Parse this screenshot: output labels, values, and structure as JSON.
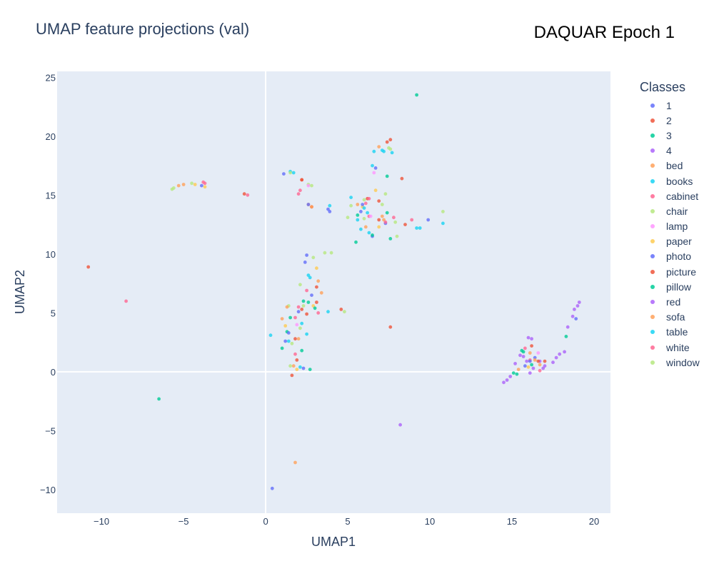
{
  "chart_data": {
    "type": "scatter",
    "title": "UMAP feature projections (val)",
    "annotation": "DAQUAR Epoch 1",
    "xlabel": "UMAP1",
    "ylabel": "UMAP2",
    "xlim": [
      -12.7,
      21
    ],
    "ylim": [
      -12,
      25.5
    ],
    "xticks": [
      -10,
      -5,
      0,
      5,
      10,
      15,
      20
    ],
    "yticks": [
      -10,
      -5,
      0,
      5,
      10,
      15,
      20,
      25
    ],
    "grid": true,
    "legend_title": "Classes",
    "legend_position": "right",
    "plot_background": "#e5ecf6",
    "series": [
      {
        "name": "1",
        "color": "#636efa",
        "points": [
          [
            0.4,
            -9.9
          ],
          [
            2.3,
            0.3
          ],
          [
            7.3,
            12.6
          ],
          [
            15.8,
            0.5
          ],
          [
            18.9,
            4.5
          ],
          [
            1.2,
            2.6
          ],
          [
            5.8,
            13.6
          ],
          [
            3.8,
            13.8
          ],
          [
            -3.9,
            15.8
          ],
          [
            2.0,
            5.1
          ],
          [
            6.7,
            17.3
          ],
          [
            2.4,
            9.3
          ],
          [
            16.4,
            1.2
          ],
          [
            1.1,
            16.8
          ]
        ]
      },
      {
        "name": "2",
        "color": "#ef553b",
        "points": [
          [
            -10.8,
            8.9
          ],
          [
            2.5,
            4.9
          ],
          [
            7.6,
            19.7
          ],
          [
            16.2,
            2.2
          ],
          [
            8.3,
            16.4
          ],
          [
            1.8,
            2.8
          ],
          [
            6.2,
            14.7
          ],
          [
            4.6,
            5.3
          ],
          [
            2.2,
            16.3
          ],
          [
            1.9,
            1.0
          ],
          [
            17.0,
            0.9
          ],
          [
            -1.3,
            15.1
          ],
          [
            3.1,
            5.9
          ],
          [
            6.9,
            12.9
          ]
        ]
      },
      {
        "name": "3",
        "color": "#00cc96",
        "points": [
          [
            -6.5,
            -2.3
          ],
          [
            1.3,
            3.4
          ],
          [
            2.6,
            5.9
          ],
          [
            15.3,
            -0.2
          ],
          [
            18.3,
            3.0
          ],
          [
            7.6,
            11.3
          ],
          [
            9.2,
            23.5
          ],
          [
            2.7,
            0.2
          ],
          [
            5.5,
            11.0
          ],
          [
            7.4,
            16.6
          ],
          [
            15.6,
            1.8
          ],
          [
            1.0,
            2.0
          ]
        ]
      },
      {
        "name": "4",
        "color": "#ab63fa",
        "points": [
          [
            8.2,
            -4.5
          ],
          [
            16.3,
            0.3
          ],
          [
            15.5,
            1.4
          ],
          [
            18.8,
            5.3
          ],
          [
            19.1,
            5.9
          ],
          [
            16.0,
            2.9
          ],
          [
            17.0,
            0.5
          ],
          [
            14.7,
            -0.7
          ],
          [
            16.7,
            0.9
          ],
          [
            17.7,
            1.2
          ],
          [
            15.9,
            0.9
          ],
          [
            18.2,
            1.7
          ]
        ]
      },
      {
        "name": "bed",
        "color": "#ffa15a",
        "points": [
          [
            1.8,
            -7.7
          ],
          [
            1.0,
            4.5
          ],
          [
            -5.0,
            15.9
          ],
          [
            2.6,
            14.2
          ],
          [
            7.2,
            12.9
          ],
          [
            16.4,
            1.0
          ],
          [
            5.6,
            14.2
          ],
          [
            3.2,
            7.7
          ],
          [
            1.7,
            0.5
          ],
          [
            16.1,
            1.6
          ]
        ]
      },
      {
        "name": "books",
        "color": "#19d3f3",
        "points": [
          [
            6.6,
            18.7
          ],
          [
            7.2,
            18.7
          ],
          [
            2.5,
            3.2
          ],
          [
            6.2,
            13.5
          ],
          [
            10.8,
            12.6
          ],
          [
            1.5,
            17.0
          ],
          [
            5.2,
            14.8
          ],
          [
            3.8,
            5.1
          ],
          [
            1.4,
            2.6
          ],
          [
            7.7,
            18.6
          ],
          [
            2.6,
            8.2
          ],
          [
            5.8,
            12.1
          ],
          [
            9.4,
            12.2
          ]
        ]
      },
      {
        "name": "cabinet",
        "color": "#ff6692",
        "points": [
          [
            -8.5,
            6.0
          ],
          [
            -3.7,
            16.0
          ],
          [
            2.0,
            15.1
          ],
          [
            16.1,
            1.0
          ],
          [
            1.8,
            4.6
          ],
          [
            7.3,
            12.7
          ],
          [
            6.1,
            14.3
          ],
          [
            2.5,
            6.9
          ],
          [
            -1.1,
            15.0
          ],
          [
            16.7,
            0.1
          ],
          [
            6.3,
            13.2
          ]
        ]
      },
      {
        "name": "chair",
        "color": "#b6e880",
        "points": [
          [
            -4.5,
            16.0
          ],
          [
            1.6,
            2.4
          ],
          [
            2.1,
            7.4
          ],
          [
            7.3,
            15.1
          ],
          [
            10.8,
            13.6
          ],
          [
            3.6,
            10.1
          ],
          [
            6.0,
            13.0
          ],
          [
            2.6,
            15.9
          ],
          [
            7.9,
            12.7
          ],
          [
            4.8,
            5.1
          ],
          [
            1.4,
            5.6
          ],
          [
            5.0,
            13.1
          ],
          [
            7.5,
            19.0
          ],
          [
            -5.7,
            15.5
          ],
          [
            2.9,
            9.7
          ]
        ]
      },
      {
        "name": "lamp",
        "color": "#ff97ff",
        "points": [
          [
            1.9,
            4.0
          ],
          [
            6.6,
            16.9
          ],
          [
            16.6,
            1.6
          ],
          [
            2.6,
            15.8
          ],
          [
            6.4,
            13.2
          ]
        ]
      },
      {
        "name": "paper",
        "color": "#fecb52",
        "points": [
          [
            -4.3,
            15.9
          ],
          [
            2.9,
            5.6
          ],
          [
            6.7,
            15.4
          ],
          [
            6.9,
            12.3
          ],
          [
            16.0,
            0.4
          ],
          [
            1.2,
            3.9
          ],
          [
            5.9,
            14.0
          ],
          [
            3.1,
            8.8
          ],
          [
            1.9,
            0.2
          ],
          [
            -3.7,
            15.7
          ]
        ]
      },
      {
        "name": "photo",
        "color": "#636efa",
        "points": [
          [
            2.6,
            14.2
          ],
          [
            6.5,
            11.5
          ],
          [
            5.9,
            14.2
          ],
          [
            16.1,
            0.9
          ],
          [
            2.8,
            6.5
          ],
          [
            1.4,
            3.3
          ],
          [
            3.9,
            13.6
          ],
          [
            9.9,
            12.9
          ],
          [
            2.5,
            9.9
          ]
        ]
      },
      {
        "name": "picture",
        "color": "#ef553b",
        "points": [
          [
            7.6,
            3.8
          ],
          [
            2.2,
            5.3
          ],
          [
            7.4,
            19.5
          ],
          [
            2.8,
            14.0
          ],
          [
            16.6,
            0.9
          ],
          [
            6.9,
            14.5
          ],
          [
            1.6,
            -0.3
          ],
          [
            3.1,
            7.2
          ],
          [
            8.5,
            12.5
          ],
          [
            2.2,
            16.3
          ]
        ]
      },
      {
        "name": "pillow",
        "color": "#00cc96",
        "points": [
          [
            2.3,
            6.0
          ],
          [
            7.4,
            13.5
          ],
          [
            15.1,
            -0.1
          ],
          [
            1.5,
            4.6
          ],
          [
            5.6,
            13.3
          ],
          [
            3.0,
            5.4
          ],
          [
            16.2,
            0.6
          ],
          [
            2.2,
            1.8
          ],
          [
            6.5,
            11.6
          ],
          [
            15.7,
            1.7
          ]
        ]
      },
      {
        "name": "red",
        "color": "#ab63fa",
        "points": [
          [
            15.7,
            1.3
          ],
          [
            18.7,
            4.7
          ],
          [
            14.5,
            -0.9
          ],
          [
            16.2,
            2.8
          ],
          [
            17.5,
            0.8
          ],
          [
            15.2,
            0.7
          ],
          [
            16.9,
            0.3
          ],
          [
            19.0,
            5.6
          ],
          [
            16.1,
            -0.1
          ],
          [
            17.9,
            1.5
          ],
          [
            14.9,
            -0.4
          ],
          [
            18.4,
            3.8
          ]
        ]
      },
      {
        "name": "sofa",
        "color": "#ffa15a",
        "points": [
          [
            2.0,
            2.8
          ],
          [
            6.9,
            19.1
          ],
          [
            15.4,
            0.2
          ],
          [
            -5.3,
            15.8
          ],
          [
            2.8,
            14.0
          ],
          [
            1.3,
            5.5
          ],
          [
            7.1,
            13.2
          ],
          [
            16.7,
            0.6
          ],
          [
            3.4,
            6.7
          ],
          [
            6.1,
            12.3
          ]
        ]
      },
      {
        "name": "table",
        "color": "#19d3f3",
        "points": [
          [
            0.3,
            3.1
          ],
          [
            6.5,
            17.5
          ],
          [
            6.0,
            13.9
          ],
          [
            3.9,
            14.1
          ],
          [
            7.1,
            18.8
          ],
          [
            2.2,
            4.1
          ],
          [
            9.2,
            12.2
          ],
          [
            2.1,
            0.4
          ],
          [
            2.7,
            8.0
          ],
          [
            1.7,
            16.9
          ],
          [
            6.3,
            11.8
          ],
          [
            5.6,
            12.9
          ]
        ]
      },
      {
        "name": "white",
        "color": "#ff6692",
        "points": [
          [
            -3.8,
            16.1
          ],
          [
            2.1,
            15.4
          ],
          [
            2.0,
            5.5
          ],
          [
            6.3,
            14.7
          ],
          [
            8.9,
            12.9
          ],
          [
            1.8,
            1.5
          ],
          [
            15.8,
            2.0
          ],
          [
            3.2,
            5.0
          ],
          [
            7.8,
            13.1
          ]
        ]
      },
      {
        "name": "window",
        "color": "#b6e880",
        "points": [
          [
            2.3,
            5.6
          ],
          [
            -5.6,
            15.6
          ],
          [
            7.1,
            14.2
          ],
          [
            1.5,
            16.9
          ],
          [
            4.0,
            10.1
          ],
          [
            2.1,
            3.7
          ],
          [
            7.6,
            18.9
          ],
          [
            2.8,
            15.8
          ],
          [
            8.0,
            11.5
          ],
          [
            6.0,
            14.6
          ],
          [
            1.5,
            0.5
          ],
          [
            5.2,
            14.1
          ]
        ]
      }
    ]
  }
}
